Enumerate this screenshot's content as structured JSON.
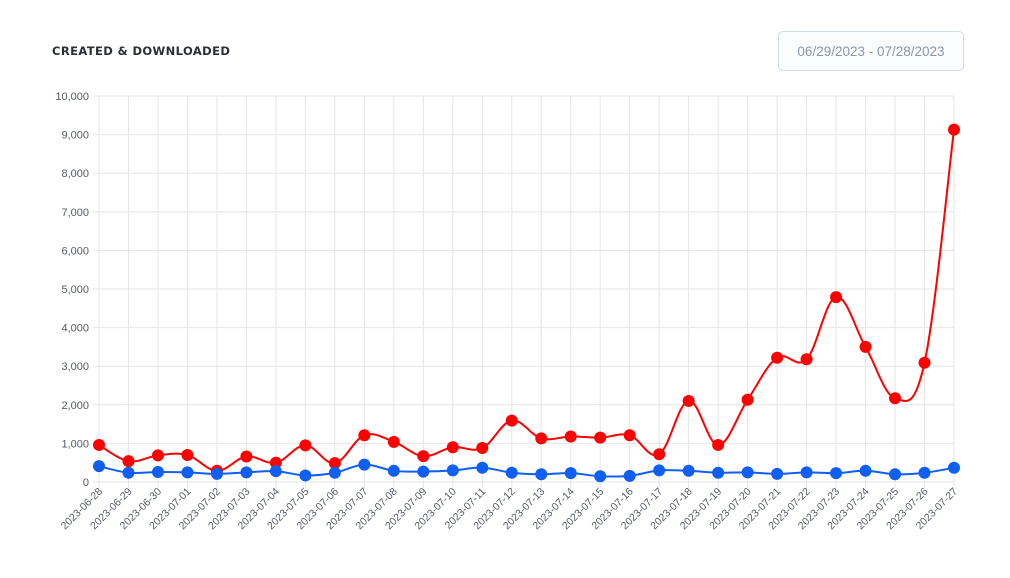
{
  "header": {
    "title": "CREATED & DOWNLOADED",
    "date_range": "06/29/2023 - 07/28/2023"
  },
  "chart_data": {
    "type": "line",
    "title": "CREATED & DOWNLOADED",
    "xlabel": "",
    "ylabel": "",
    "ylim": [
      0,
      10000
    ],
    "y_ticks": [
      0,
      1000,
      2000,
      3000,
      4000,
      5000,
      6000,
      7000,
      8000,
      9000,
      10000
    ],
    "y_tick_labels": [
      "0",
      "1,000",
      "2,000",
      "3,000",
      "4,000",
      "5,000",
      "6,000",
      "7,000",
      "8,000",
      "9,000",
      "10,000"
    ],
    "grid": true,
    "categories": [
      "2023-06-28",
      "2023-06-29",
      "2023-06-30",
      "2023-07-01",
      "2023-07-02",
      "2023-07-03",
      "2023-07-04",
      "2023-07-05",
      "2023-07-06",
      "2023-07-07",
      "2023-07-08",
      "2023-07-09",
      "2023-07-10",
      "2023-07-11",
      "2023-07-12",
      "2023-07-13",
      "2023-07-14",
      "2023-07-15",
      "2023-07-16",
      "2023-07-17",
      "2023-07-18",
      "2023-07-19",
      "2023-07-20",
      "2023-07-21",
      "2023-07-22",
      "2023-07-23",
      "2023-07-24",
      "2023-07-25",
      "2023-07-26",
      "2023-07-27"
    ],
    "series": [
      {
        "color": "#ff0000",
        "values": [
          960,
          540,
          690,
          700,
          290,
          660,
          500,
          950,
          490,
          1210,
          1040,
          670,
          900,
          880,
          1590,
          1130,
          1180,
          1150,
          1210,
          720,
          2100,
          960,
          2130,
          3220,
          3180,
          4790,
          3500,
          2170,
          3090,
          9130
        ]
      },
      {
        "color": "#0f5ff5",
        "values": [
          410,
          240,
          260,
          250,
          210,
          250,
          280,
          170,
          240,
          450,
          290,
          270,
          300,
          370,
          240,
          200,
          230,
          150,
          160,
          300,
          290,
          240,
          250,
          210,
          250,
          230,
          290,
          200,
          240,
          370
        ]
      }
    ]
  }
}
